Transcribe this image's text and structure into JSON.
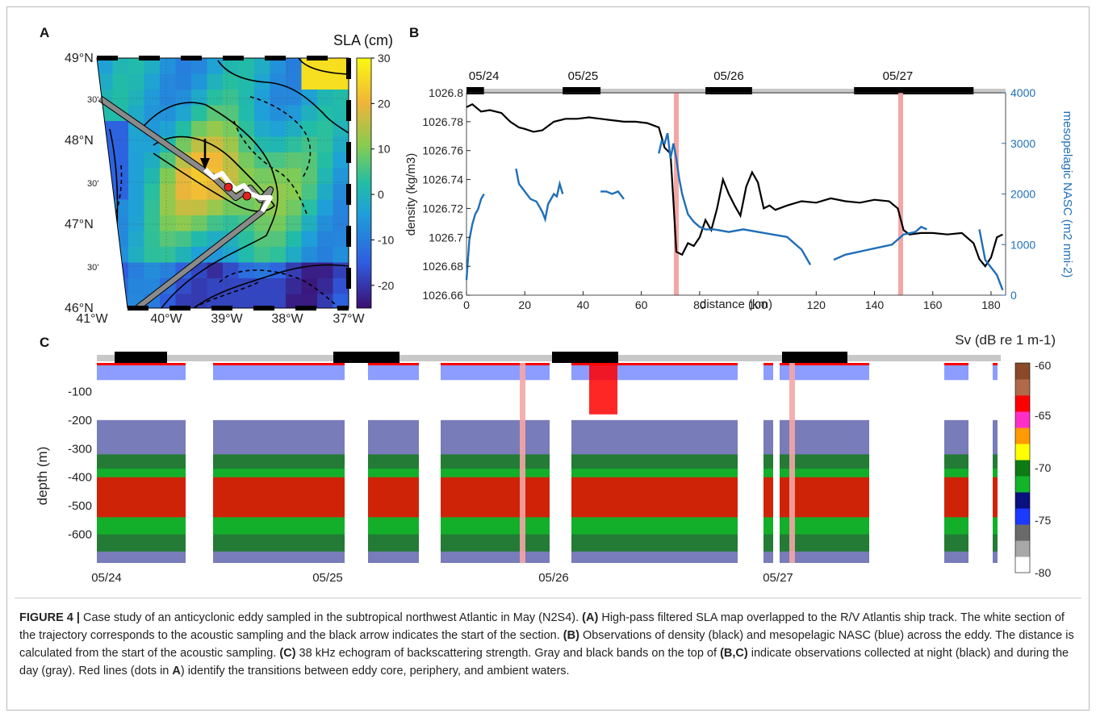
{
  "panel_labels": {
    "a": "A",
    "b": "B",
    "c": "C"
  },
  "caption": {
    "figure_no": "FIGURE 4 |",
    "text_1": " Case study of an anticyclonic eddy sampled in the subtropical northwest Atlantic in May (N2S4). ",
    "ref_a": "(A)",
    "text_2": " High-pass filtered SLA map overlapped to the R/V Atlantis ship track. The white section of the trajectory corresponds to the acoustic sampling and the black arrow indicates the start of the section. ",
    "ref_b": "(B)",
    "text_3": " Observations of density (black) and mesopelagic NASC (blue) across the eddy. The distance is calculated from the start of the acoustic sampling. ",
    "ref_c": "(C)",
    "text_4": " 38 kHz echogram of backscattering strength. Gray and black bands on the top of ",
    "ref_bc": "(B,C)",
    "text_5": " indicate observations collected at night (black) and during the day (gray). Red lines (dots in ",
    "ref_a2": "A",
    "text_6": ") identify the transitions between eddy core, periphery, and ambient waters."
  },
  "chart_data": [
    {
      "panel": "A",
      "type": "heatmap",
      "colorbar_title": "SLA (cm)",
      "colorbar_ticks": [
        "30",
        "20",
        "10",
        "0",
        "-10",
        "-20"
      ],
      "colorbar_range": [
        -25,
        30
      ],
      "lat_ticks": [
        "49°N",
        "30'",
        "48°N",
        "30'",
        "47°N",
        "30'",
        "46°N"
      ],
      "lon_ticks": [
        "41°W",
        "40°W",
        "39°W",
        "38°W",
        "37°W"
      ],
      "colors": {
        "land_frame": "#000000",
        "track": "#8a8a8a",
        "acoustic_section": "#ffffff",
        "transition_dots": "#e0231f"
      }
    },
    {
      "panel": "B",
      "type": "line",
      "xlabel": "distance (km)",
      "ylabel_left": "density (kg/m3)",
      "ylabel_right": "mesopelagic NASC (m2 nmi-2)",
      "x_ticks": [
        "0",
        "20",
        "40",
        "60",
        "80",
        "100",
        "120",
        "140",
        "160",
        "180"
      ],
      "y_left_ticks": [
        "1026.8",
        "1026.78",
        "1026.76",
        "1026.74",
        "1026.72",
        "1026.7",
        "1026.68",
        "1026.66"
      ],
      "y_right_ticks": [
        "4000",
        "3000",
        "2000",
        "1000",
        "0"
      ],
      "xlim": [
        0,
        185
      ],
      "ylim_left": [
        1026.66,
        1026.8
      ],
      "ylim_right": [
        0,
        4000
      ],
      "day_labels": [
        "05/24",
        "05/25",
        "05/26",
        "05/27"
      ],
      "night_bands_km": [
        [
          0,
          6
        ],
        [
          33,
          46
        ],
        [
          82,
          98
        ],
        [
          133,
          174
        ]
      ],
      "transitions_km": [
        72,
        149
      ],
      "series": [
        {
          "name": "density",
          "color": "#000000",
          "axis": "left",
          "x": [
            0,
            2,
            5,
            8,
            12,
            15,
            18,
            20,
            23,
            26,
            30,
            34,
            38,
            42,
            46,
            50,
            54,
            58,
            62,
            66,
            68,
            70,
            71,
            72,
            74,
            76,
            78,
            80,
            82,
            84,
            86,
            88,
            90,
            92,
            94,
            96,
            98,
            100,
            102,
            104,
            106,
            110,
            115,
            120,
            125,
            130,
            135,
            140,
            145,
            148,
            150,
            152,
            156,
            160,
            165,
            170,
            174,
            176,
            178,
            180,
            182,
            184
          ],
          "y": [
            1026.79,
            1026.792,
            1026.787,
            1026.788,
            1026.786,
            1026.78,
            1026.776,
            1026.775,
            1026.773,
            1026.774,
            1026.78,
            1026.782,
            1026.782,
            1026.783,
            1026.782,
            1026.781,
            1026.78,
            1026.78,
            1026.779,
            1026.776,
            1026.762,
            1026.758,
            1026.725,
            1026.69,
            1026.688,
            1026.696,
            1026.694,
            1026.7,
            1026.712,
            1026.705,
            1026.72,
            1026.74,
            1026.73,
            1026.722,
            1026.715,
            1026.735,
            1026.745,
            1026.738,
            1026.72,
            1026.722,
            1026.719,
            1026.722,
            1026.725,
            1026.724,
            1026.727,
            1026.725,
            1026.724,
            1026.726,
            1026.725,
            1026.72,
            1026.705,
            1026.702,
            1026.703,
            1026.703,
            1026.702,
            1026.703,
            1026.696,
            1026.685,
            1026.68,
            1026.686,
            1026.7,
            1026.702
          ]
        },
        {
          "name": "NASC",
          "color": "#1f6fb8",
          "axis": "right",
          "segments": [
            {
              "x": [
                0,
                1,
                2,
                3,
                4,
                5,
                6
              ],
              "y": [
                300,
                1100,
                1400,
                1600,
                1700,
                1900,
                2000
              ]
            },
            {
              "x": [
                17,
                18,
                20,
                22,
                24,
                26,
                27,
                28,
                30,
                31,
                32,
                33
              ],
              "y": [
                2500,
                2200,
                2050,
                1900,
                1850,
                1650,
                1500,
                1800,
                2000,
                1950,
                2200,
                2000
              ]
            },
            {
              "x": [
                46,
                48,
                50,
                52,
                54
              ],
              "y": [
                2050,
                2050,
                2000,
                2050,
                1900
              ]
            },
            {
              "x": [
                66,
                67,
                68,
                69,
                70,
                71,
                72,
                73,
                74,
                75,
                76,
                78,
                80,
                82,
                85,
                90,
                95,
                100,
                105,
                110,
                115,
                118
              ],
              "y": [
                2800,
                3050,
                3000,
                3200,
                2700,
                3000,
                2700,
                2300,
                2000,
                1800,
                1600,
                1450,
                1350,
                1300,
                1300,
                1250,
                1300,
                1250,
                1200,
                1150,
                900,
                600
              ]
            },
            {
              "x": [
                126,
                130,
                134,
                138,
                142,
                146,
                150,
                154,
                156,
                158
              ],
              "y": [
                700,
                800,
                850,
                900,
                950,
                1000,
                1200,
                1250,
                1350,
                1300
              ]
            },
            {
              "x": [
                176,
                178,
                180,
                182,
                184
              ],
              "y": [
                1300,
                700,
                550,
                400,
                100
              ]
            }
          ]
        }
      ]
    },
    {
      "panel": "C",
      "type": "heatmap",
      "ylabel": "depth (m)",
      "colorbar_title": "Sv (dB re 1 m-1)",
      "colorbar_ticks": [
        "-60",
        "-65",
        "-70",
        "-75",
        "-80"
      ],
      "colorbar_range": [
        -80,
        -60
      ],
      "colorbar_colors": [
        "#ffffff",
        "#a8a8a8",
        "#6a6a6a",
        "#1a3bff",
        "#0a1080",
        "#12b52a",
        "#0e7a14",
        "#ffff00",
        "#ff9a00",
        "#ff2fc8",
        "#ff0000",
        "#b06a4a",
        "#8a4a2a"
      ],
      "y_ticks": [
        "-100",
        "-200",
        "-300",
        "-400",
        "-500",
        "-600"
      ],
      "x_ticks": [
        "05/24",
        "05/25",
        "05/26",
        "05/27"
      ]
    }
  ]
}
